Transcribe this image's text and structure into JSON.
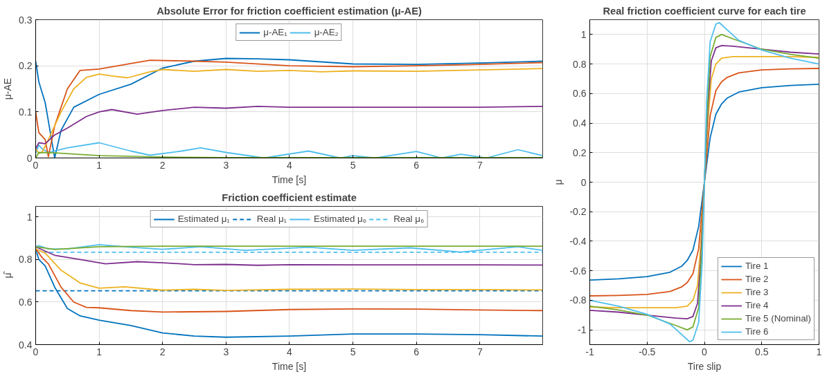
{
  "chart_data": [
    {
      "type": "line",
      "title": "Absolute Error for friction coefficient estimation (μ-AE)",
      "xlabel": "Time [s]",
      "ylabel": "μ-AE",
      "xlim": [
        0,
        7.99
      ],
      "ylim": [
        0,
        0.3
      ],
      "xticks": [
        0,
        1,
        2,
        3,
        4,
        5,
        6,
        7
      ],
      "yticks": [
        0,
        0.1,
        0.2,
        0.3
      ],
      "grid": true,
      "legend": "top",
      "series": [
        {
          "name": "μ-AE₁",
          "color": "#0072bd",
          "x": [
            0,
            0.05,
            0.15,
            0.2,
            0.3,
            0.4,
            0.6,
            1,
            1.5,
            2,
            2.5,
            3,
            3.5,
            4,
            5,
            6,
            7,
            7.99
          ],
          "values": [
            0.21,
            0.165,
            0.12,
            0.08,
            0,
            0.06,
            0.11,
            0.138,
            0.16,
            0.195,
            0.21,
            0.216,
            0.215,
            0.213,
            0.204,
            0.203,
            0.206,
            0.21
          ]
        },
        {
          "name": "μ-AE₂",
          "color": "#4dbeee",
          "x": [
            0,
            0.05,
            0.1,
            0.2,
            0.5,
            1,
            1.5,
            1.8,
            2.3,
            2.6,
            3,
            3.6,
            4.3,
            4.8,
            5,
            5.35,
            6,
            6.4,
            6.7,
            7.1,
            7.6,
            7.99
          ],
          "values": [
            0.01,
            0.028,
            0.02,
            0.012,
            0.022,
            0.033,
            0.015,
            0.006,
            0.015,
            0.022,
            0.012,
            0,
            0.015,
            0,
            0.005,
            0,
            0.014,
            0,
            0.008,
            0,
            0.018,
            0.005
          ]
        },
        {
          "color": "#d95319",
          "x": [
            0,
            0.05,
            0.15,
            0.2,
            0.3,
            0.5,
            0.7,
            1,
            1.5,
            1.8,
            2.5,
            3,
            4,
            5,
            6,
            7,
            7.99
          ],
          "values": [
            0.1,
            0.055,
            0.04,
            0.003,
            0.07,
            0.15,
            0.19,
            0.193,
            0.205,
            0.212,
            0.21,
            0.208,
            0.2,
            0.198,
            0.2,
            0.203,
            0.207
          ]
        },
        {
          "color": "#edb120",
          "x": [
            0,
            0.05,
            0.1,
            0.2,
            0.4,
            0.6,
            0.8,
            1,
            1.2,
            1.45,
            1.8,
            2,
            2.5,
            3,
            3.5,
            4,
            4.5,
            5,
            6,
            7,
            7.99
          ],
          "values": [
            0.02,
            0.01,
            0.012,
            0.04,
            0.1,
            0.15,
            0.175,
            0.182,
            0.178,
            0.174,
            0.187,
            0.192,
            0.188,
            0.192,
            0.188,
            0.19,
            0.187,
            0.189,
            0.188,
            0.191,
            0.194
          ]
        },
        {
          "color": "#7e2f8e",
          "x": [
            0,
            0.05,
            0.15,
            0.3,
            0.5,
            0.8,
            1,
            1.2,
            1.6,
            2,
            2.5,
            3,
            3.5,
            4,
            5,
            6,
            7,
            7.99
          ],
          "values": [
            0.02,
            0.033,
            0.031,
            0.05,
            0.065,
            0.09,
            0.1,
            0.105,
            0.095,
            0.103,
            0.11,
            0.108,
            0.112,
            0.11,
            0.11,
            0.11,
            0.11,
            0.112
          ]
        },
        {
          "color": "#77ac30",
          "x": [
            0,
            0.05,
            0.3,
            1,
            2,
            3,
            5,
            7.99
          ],
          "values": [
            0,
            0.012,
            0.011,
            0.005,
            0.002,
            0.001,
            0.001,
            0.001
          ]
        }
      ]
    },
    {
      "type": "line",
      "title": "Friction coefficient estimate",
      "xlabel": "Time [s]",
      "ylabel": "μ̂",
      "xlim": [
        0,
        7.99
      ],
      "ylim": [
        0.4,
        1.05
      ],
      "xticks": [
        0,
        1,
        2,
        3,
        4,
        5,
        6,
        7
      ],
      "yticks": [
        0.4,
        0.6,
        0.8,
        1
      ],
      "grid": true,
      "legend": "top",
      "series": [
        {
          "name": "Estimated μ₁",
          "color": "#0072bd",
          "x": [
            0,
            0.05,
            0.15,
            0.3,
            0.5,
            0.7,
            1,
            1.5,
            2,
            2.5,
            3,
            4,
            5,
            6,
            7,
            7.99
          ],
          "values": [
            0.85,
            0.8,
            0.77,
            0.67,
            0.57,
            0.535,
            0.515,
            0.49,
            0.455,
            0.44,
            0.435,
            0.44,
            0.45,
            0.45,
            0.447,
            0.44
          ]
        },
        {
          "name": "Real μ₁",
          "color": "#0072bd",
          "line_style": "dashed",
          "x": [
            0,
            7.99
          ],
          "values": [
            0.653,
            0.653
          ]
        },
        {
          "name": "Estimated μ₆",
          "color": "#4dbeee",
          "x": [
            0,
            0.05,
            0.2,
            0.5,
            1,
            1.5,
            2,
            2.6,
            3.3,
            4.3,
            5,
            5.9,
            6.7,
            7.6,
            7.99
          ],
          "values": [
            0.86,
            0.865,
            0.85,
            0.85,
            0.87,
            0.858,
            0.848,
            0.86,
            0.843,
            0.858,
            0.843,
            0.855,
            0.835,
            0.86,
            0.843
          ]
        },
        {
          "name": "Real μ₆",
          "color": "#4dbeee",
          "line_style": "dashed",
          "x": [
            0,
            7.99
          ],
          "values": [
            0.834,
            0.834
          ]
        },
        {
          "color": "#d95319",
          "x": [
            0,
            0.1,
            0.2,
            0.4,
            0.6,
            0.8,
            1,
            1.5,
            2,
            3,
            4,
            5,
            6,
            7,
            7.99
          ],
          "values": [
            0.85,
            0.81,
            0.78,
            0.67,
            0.6,
            0.575,
            0.573,
            0.56,
            0.553,
            0.556,
            0.565,
            0.568,
            0.567,
            0.563,
            0.56
          ]
        },
        {
          "color": "#edb120",
          "x": [
            0,
            0.15,
            0.4,
            0.7,
            1,
            1.4,
            2,
            2.5,
            3,
            4,
            5,
            6,
            7,
            7.99
          ],
          "values": [
            0.85,
            0.83,
            0.75,
            0.69,
            0.665,
            0.672,
            0.656,
            0.66,
            0.655,
            0.66,
            0.661,
            0.659,
            0.659,
            0.657
          ]
        },
        {
          "color": "#7e2f8e",
          "x": [
            0,
            0.3,
            0.7,
            1.1,
            1.6,
            2,
            2.5,
            3,
            3.5,
            4,
            5,
            6,
            7,
            7.99
          ],
          "values": [
            0.86,
            0.82,
            0.8,
            0.78,
            0.79,
            0.785,
            0.776,
            0.777,
            0.773,
            0.776,
            0.775,
            0.775,
            0.775,
            0.774
          ]
        },
        {
          "color": "#77ac30",
          "x": [
            0,
            0.3,
            1,
            2,
            3,
            7.99
          ],
          "values": [
            0.86,
            0.847,
            0.86,
            0.863,
            0.863,
            0.863
          ]
        }
      ]
    },
    {
      "type": "line",
      "title": "Real friction coefficient curve for each tire",
      "xlabel": "Tire slip",
      "ylabel": "μ",
      "xlim": [
        -1,
        1
      ],
      "ylim": [
        -1.1,
        1.1
      ],
      "xticks": [
        -1,
        -0.5,
        0,
        0.5,
        1
      ],
      "yticks": [
        -1,
        -0.8,
        -0.6,
        -0.4,
        -0.2,
        0,
        0.2,
        0.4,
        0.6,
        0.8,
        1
      ],
      "grid": true,
      "legend": "bottom right",
      "series": [
        {
          "name": "Tire 1",
          "color": "#0072bd",
          "x": [
            -1,
            -0.75,
            -0.5,
            -0.3,
            -0.2,
            -0.15,
            -0.1,
            -0.05,
            0,
            0.05,
            0.1,
            0.15,
            0.2,
            0.3,
            0.5,
            0.75,
            1
          ],
          "values": [
            -0.663,
            -0.655,
            -0.64,
            -0.61,
            -0.57,
            -0.53,
            -0.46,
            -0.3,
            0,
            0.3,
            0.46,
            0.53,
            0.57,
            0.61,
            0.64,
            0.655,
            0.663
          ]
        },
        {
          "name": "Tire 2",
          "color": "#d95319",
          "x": [
            -1,
            -0.75,
            -0.5,
            -0.3,
            -0.2,
            -0.15,
            -0.1,
            -0.05,
            0,
            0.05,
            0.1,
            0.15,
            0.2,
            0.3,
            0.5,
            0.75,
            1
          ],
          "values": [
            -0.77,
            -0.767,
            -0.76,
            -0.74,
            -0.71,
            -0.68,
            -0.62,
            -0.45,
            0,
            0.45,
            0.62,
            0.68,
            0.71,
            0.74,
            0.76,
            0.767,
            0.77
          ]
        },
        {
          "name": "Tire 3",
          "color": "#edb120",
          "x": [
            -1,
            -0.75,
            -0.5,
            -0.25,
            -0.15,
            -0.1,
            -0.06,
            -0.03,
            0,
            0.03,
            0.06,
            0.1,
            0.15,
            0.25,
            0.5,
            0.75,
            1
          ],
          "values": [
            -0.845,
            -0.85,
            -0.85,
            -0.85,
            -0.84,
            -0.8,
            -0.7,
            -0.4,
            0,
            0.4,
            0.7,
            0.8,
            0.84,
            0.85,
            0.85,
            0.85,
            0.845
          ]
        },
        {
          "name": "Tire 4",
          "color": "#7e2f8e",
          "x": [
            -1,
            -0.75,
            -0.5,
            -0.25,
            -0.15,
            -0.1,
            -0.06,
            -0.03,
            0,
            0.03,
            0.06,
            0.1,
            0.15,
            0.25,
            0.5,
            0.75,
            1
          ],
          "values": [
            -0.868,
            -0.88,
            -0.9,
            -0.92,
            -0.925,
            -0.91,
            -0.82,
            -0.5,
            0,
            0.5,
            0.82,
            0.91,
            0.925,
            0.92,
            0.9,
            0.88,
            0.868
          ]
        },
        {
          "name": "Tire 5 (Nominal)",
          "color": "#77ac30",
          "x": [
            -1,
            -0.75,
            -0.5,
            -0.25,
            -0.15,
            -0.1,
            -0.05,
            -0.02,
            0,
            0.02,
            0.05,
            0.1,
            0.15,
            0.25,
            0.5,
            0.75,
            1
          ],
          "values": [
            -0.84,
            -0.865,
            -0.9,
            -0.97,
            -1.0,
            -0.98,
            -0.85,
            -0.4,
            0,
            0.4,
            0.85,
            0.98,
            1.0,
            0.97,
            0.9,
            0.865,
            0.84
          ]
        },
        {
          "name": "Tire 6",
          "color": "#4dbeee",
          "x": [
            -1,
            -0.75,
            -0.5,
            -0.3,
            -0.2,
            -0.13,
            -0.1,
            -0.05,
            -0.02,
            0,
            0.02,
            0.05,
            0.1,
            0.13,
            0.2,
            0.3,
            0.5,
            0.75,
            1
          ],
          "values": [
            -0.8,
            -0.84,
            -0.895,
            -0.96,
            -1.03,
            -1.08,
            -1.07,
            -0.95,
            -0.55,
            0,
            0.55,
            0.95,
            1.07,
            1.08,
            1.03,
            0.96,
            0.895,
            0.84,
            0.8
          ]
        }
      ]
    }
  ]
}
